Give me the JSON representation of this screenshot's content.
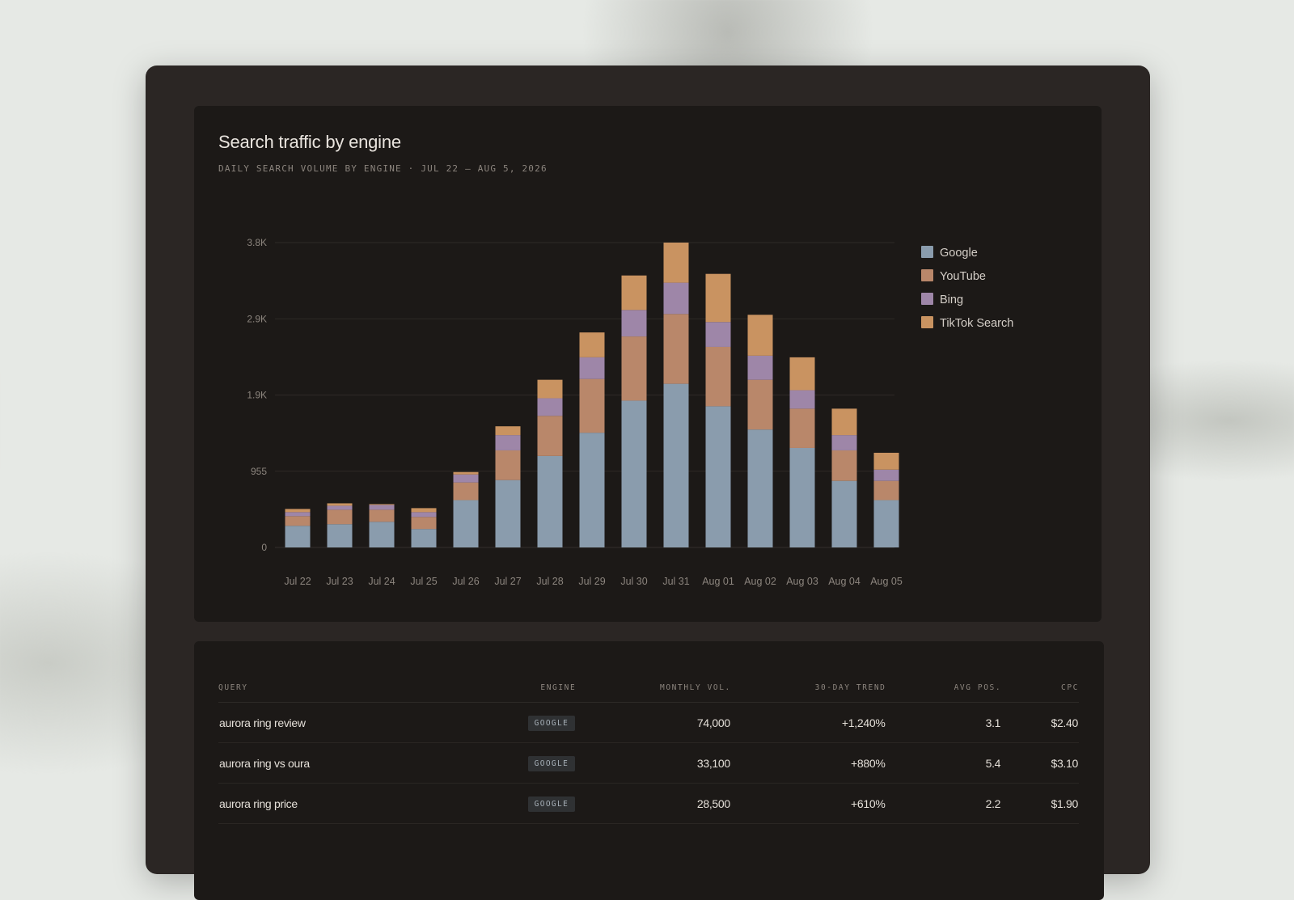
{
  "chart_card": {
    "title": "Search traffic by engine",
    "subtitle": "DAILY SEARCH VOLUME BY ENGINE · JUL 22 – AUG 5, 2026"
  },
  "chart_data": {
    "type": "bar",
    "stacked": true,
    "categories": [
      "Jul 22",
      "Jul 23",
      "Jul 24",
      "Jul 25",
      "Jul 26",
      "Jul 27",
      "Jul 28",
      "Jul 29",
      "Jul 30",
      "Jul 31",
      "Aug 01",
      "Aug 02",
      "Aug 03",
      "Aug 04",
      "Aug 05"
    ],
    "series": [
      {
        "name": "Google",
        "color": "#8a9cad",
        "values": [
          270,
          290,
          320,
          230,
          590,
          840,
          1140,
          1430,
          1830,
          2040,
          1760,
          1470,
          1240,
          830,
          590
        ]
      },
      {
        "name": "YouTube",
        "color": "#b9876a",
        "values": [
          120,
          180,
          150,
          150,
          220,
          370,
          500,
          670,
          800,
          870,
          740,
          620,
          490,
          380,
          240
        ]
      },
      {
        "name": "Bing",
        "color": "#9e86a8",
        "values": [
          50,
          50,
          60,
          60,
          100,
          190,
          220,
          270,
          330,
          390,
          310,
          300,
          230,
          190,
          140
        ]
      },
      {
        "name": "TikTok Search",
        "color": "#c99361",
        "values": [
          40,
          30,
          10,
          50,
          30,
          110,
          230,
          310,
          430,
          500,
          600,
          510,
          410,
          330,
          210
        ]
      }
    ],
    "y_ticks": [
      "0",
      "955",
      "1.9K",
      "2.9K",
      "3.8K"
    ],
    "ylim": [
      0,
      3800
    ],
    "grid": true,
    "legend": "right"
  },
  "table": {
    "headers": [
      "QUERY",
      "ENGINE",
      "MONTHLY VOL.",
      "30-DAY TREND",
      "AVG POS.",
      "CPC"
    ],
    "rows": [
      {
        "query": "aurora ring review",
        "engine": "GOOGLE",
        "volume": "74,000",
        "trend": "+1,240%",
        "pos": "3.1",
        "cpc": "$2.40"
      },
      {
        "query": "aurora ring vs oura",
        "engine": "GOOGLE",
        "volume": "33,100",
        "trend": "+880%",
        "pos": "5.4",
        "cpc": "$3.10"
      },
      {
        "query": "aurora ring price",
        "engine": "GOOGLE",
        "volume": "28,500",
        "trend": "+610%",
        "pos": "2.2",
        "cpc": "$1.90"
      }
    ]
  }
}
